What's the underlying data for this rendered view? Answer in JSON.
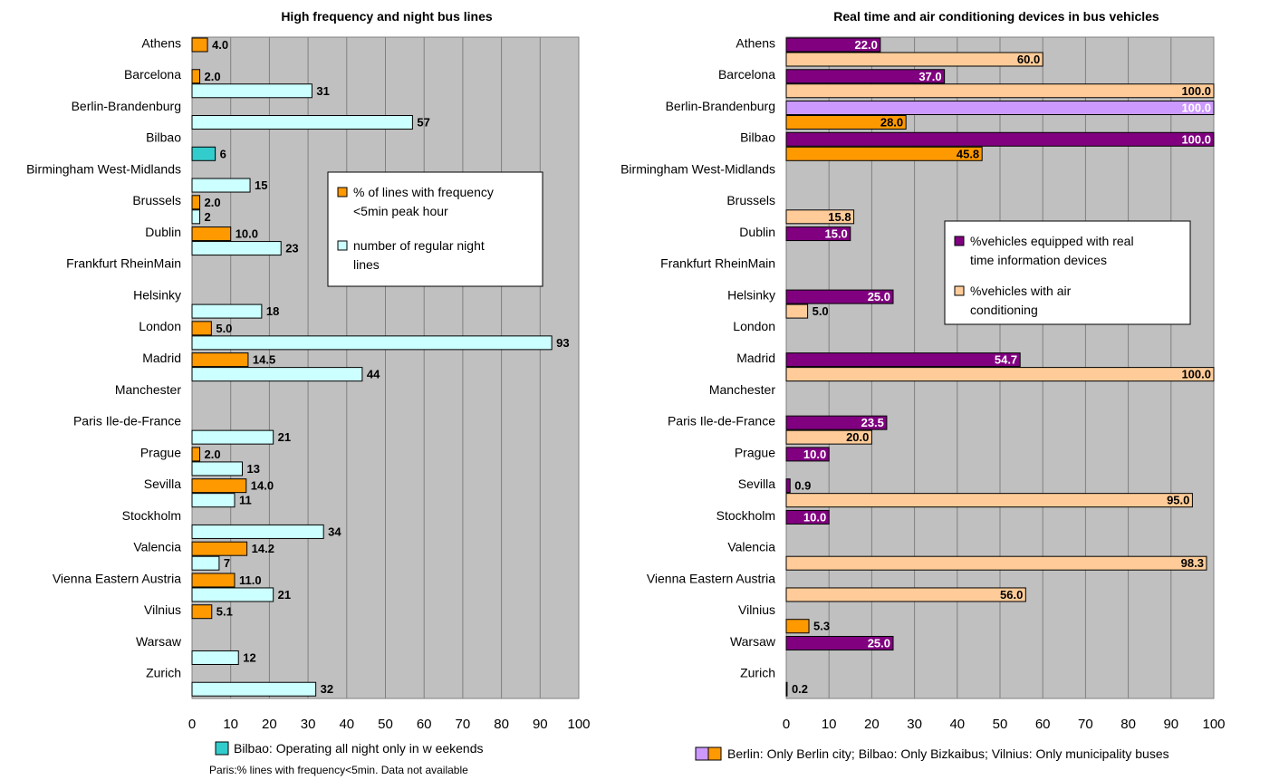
{
  "colors": {
    "plot_bg": "#c0c0c0",
    "grid": "#808080",
    "orange": "#ff9900",
    "light_cyan": "#ccffff",
    "teal": "#33cccc",
    "purple": "#800080",
    "light_purple": "#cc99ff",
    "peach": "#ffcc99"
  },
  "chart_data": [
    {
      "type": "bar",
      "orientation": "horizontal",
      "title": "High frequency and night bus lines",
      "xlim": [
        0,
        100
      ],
      "xticks": [
        "0",
        "10",
        "20",
        "30",
        "40",
        "50",
        "60",
        "70",
        "80",
        "90",
        "100"
      ],
      "grid": true,
      "legend_position": "right-middle",
      "categories": [
        "Athens",
        "Barcelona",
        "Berlin-Brandenburg",
        "Bilbao",
        "Birmingham West-Midlands",
        "Brussels",
        "Dublin",
        "Frankfurt RheinMain",
        "Helsinky",
        "London",
        "Madrid",
        "Manchester",
        "Paris Ile-de-France",
        "Prague",
        "Sevilla",
        "Stockholm",
        "Valencia",
        "Vienna Eastern Austria",
        "Vilnius",
        "Warsaw",
        "Zurich"
      ],
      "series": [
        {
          "name": "% of lines with frequency <5min peak hour",
          "color": "#ff9900",
          "values": [
            4.0,
            2.0,
            null,
            null,
            null,
            2.0,
            10.0,
            null,
            null,
            5.0,
            14.5,
            null,
            null,
            2.0,
            14.0,
            null,
            14.2,
            11.0,
            5.1,
            null,
            null
          ],
          "labels": [
            "4.0",
            "2.0",
            "",
            "",
            "",
            "2.0",
            "10.0",
            "",
            "",
            "5.0",
            "14.5",
            "",
            "",
            "2.0",
            "14.0",
            "",
            "14.2",
            "11.0",
            "5.1",
            "",
            ""
          ]
        },
        {
          "name": "number of regular night lines",
          "color": "#ccffff",
          "values": [
            null,
            31,
            57,
            6,
            15,
            2,
            23,
            null,
            18,
            93,
            44,
            null,
            21,
            13,
            11,
            34,
            7,
            21,
            null,
            12,
            32
          ],
          "labels": [
            "",
            "31",
            "57",
            "6",
            "15",
            "2",
            "23",
            "",
            "18",
            "93",
            "44",
            "",
            "21",
            "13",
            "11",
            "34",
            "7",
            "21",
            "",
            "12",
            "32"
          ],
          "point_colors": {
            "3": "#33cccc"
          }
        }
      ],
      "notes": [
        "Bilbao: Operating all night only in w eekends",
        "Paris:% lines with frequency<5min. Data not available"
      ]
    },
    {
      "type": "bar",
      "orientation": "horizontal",
      "title": "Real time and air conditioning devices in bus vehicles",
      "xlim": [
        0,
        100
      ],
      "xticks": [
        "0",
        "10",
        "20",
        "30",
        "40",
        "50",
        "60",
        "70",
        "80",
        "90",
        "100"
      ],
      "grid": true,
      "legend_position": "right-middle",
      "categories": [
        "Athens",
        "Barcelona",
        "Berlin-Brandenburg",
        "Bilbao",
        "Birmingham West-Midlands",
        "Brussels",
        "Dublin",
        "Frankfurt RheinMain",
        "Helsinky",
        "London",
        "Madrid",
        "Manchester",
        "Paris Ile-de-France",
        "Prague",
        "Sevilla",
        "Stockholm",
        "Valencia",
        "Vienna Eastern Austria",
        "Vilnius",
        "Warsaw",
        "Zurich"
      ],
      "series": [
        {
          "name": "%vehicles equipped with real time information devices",
          "color": "#800080",
          "values": [
            22.0,
            37.0,
            100.0,
            100.0,
            null,
            null,
            15.0,
            null,
            25.0,
            null,
            54.7,
            null,
            23.5,
            10.0,
            0.9,
            10.0,
            null,
            null,
            null,
            25.0,
            null
          ],
          "labels": [
            "22.0",
            "37.0",
            "100.0",
            "100.0",
            "",
            "",
            "15.0",
            "",
            "25.0",
            "",
            "54.7",
            "",
            "23.5",
            "10.0",
            "0.9",
            "10.0",
            "",
            "",
            "",
            "25.0",
            ""
          ],
          "point_colors": {
            "2": "#cc99ff"
          }
        },
        {
          "name": "%vehicles with air conditioning",
          "color": "#ffcc99",
          "values": [
            60.0,
            100.0,
            28.0,
            45.8,
            null,
            15.8,
            null,
            null,
            5.0,
            null,
            100.0,
            null,
            20.0,
            null,
            95.0,
            null,
            98.3,
            56.0,
            5.3,
            null,
            0.2
          ],
          "labels": [
            "60.0",
            "100.0",
            "28.0",
            "45.8",
            "",
            "15.8",
            "",
            "",
            "5.0",
            "",
            "100.0",
            "",
            "20.0",
            "",
            "95.0",
            "",
            "98.3",
            "56.0",
            "5.3",
            "",
            "0.2"
          ],
          "point_colors": {
            "2": "#ff9900",
            "3": "#ff9900",
            "18": "#ff9900"
          }
        }
      ],
      "notes": [
        "Berlin: Only Berlin city; Bilbao: Only Bizkaibus; Vilnius: Only municipality buses"
      ]
    }
  ]
}
